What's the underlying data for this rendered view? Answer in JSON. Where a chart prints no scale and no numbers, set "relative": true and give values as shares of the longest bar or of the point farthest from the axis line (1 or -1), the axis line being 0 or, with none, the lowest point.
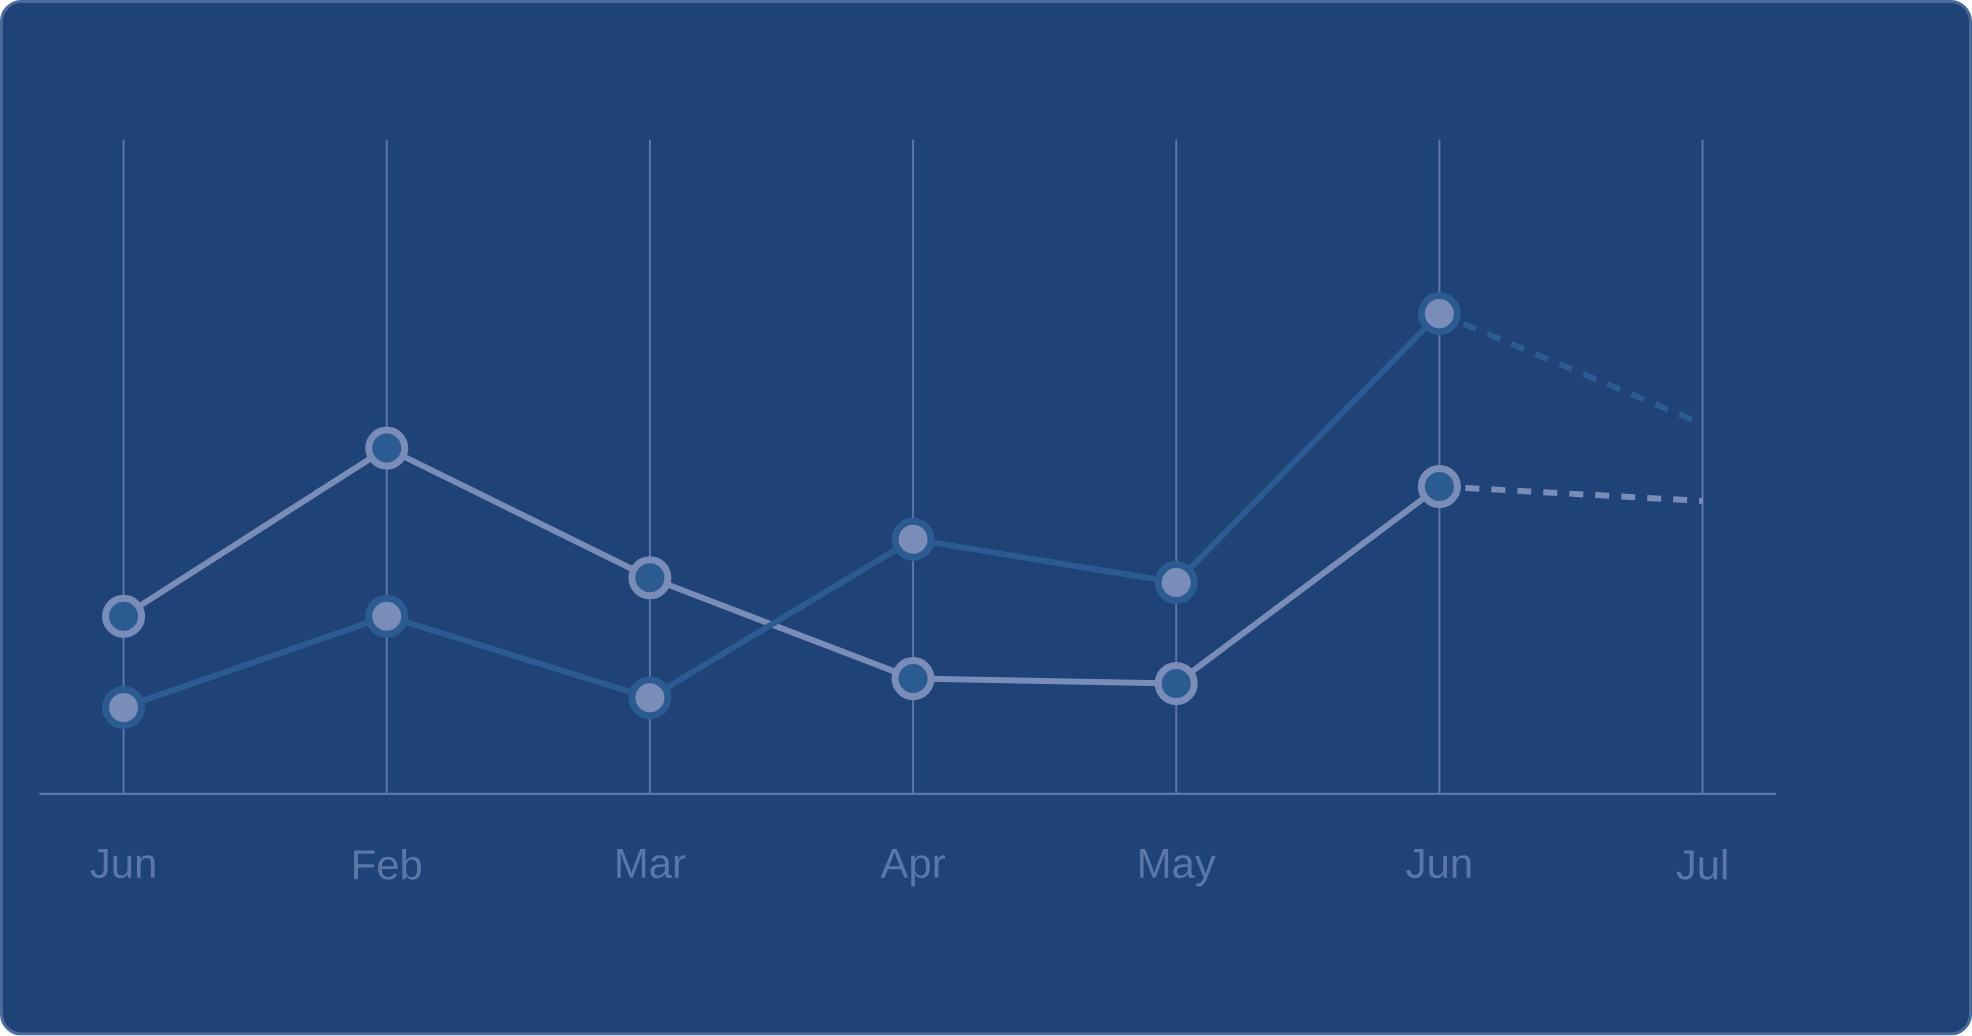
{
  "chart_data": {
    "type": "line",
    "relative": true,
    "grid": "x",
    "categories": [
      "Jun",
      "Feb",
      "Mar",
      "Apr",
      "May",
      "Jun",
      "Jul"
    ],
    "series": [
      {
        "color": "#7a8cb8",
        "marker": "circle",
        "line_style": "solid",
        "values": [
          0.37,
          0.72,
          0.45,
          0.24,
          0.23,
          0.64,
          null
        ]
      },
      {
        "color": "#2b5b90",
        "marker": "circle",
        "line_style": "solid",
        "values": [
          0.18,
          0.37,
          0.2,
          0.53,
          0.44,
          1,
          null
        ]
      },
      {
        "color": "#7a8cb8",
        "marker": "none",
        "line_style": "dashed",
        "values": [
          null,
          null,
          null,
          null,
          null,
          0.64,
          0.61
        ]
      },
      {
        "color": "#2b5b90",
        "marker": "none",
        "line_style": "dashed",
        "values": [
          null,
          null,
          null,
          null,
          null,
          1,
          0.77
        ]
      }
    ]
  }
}
